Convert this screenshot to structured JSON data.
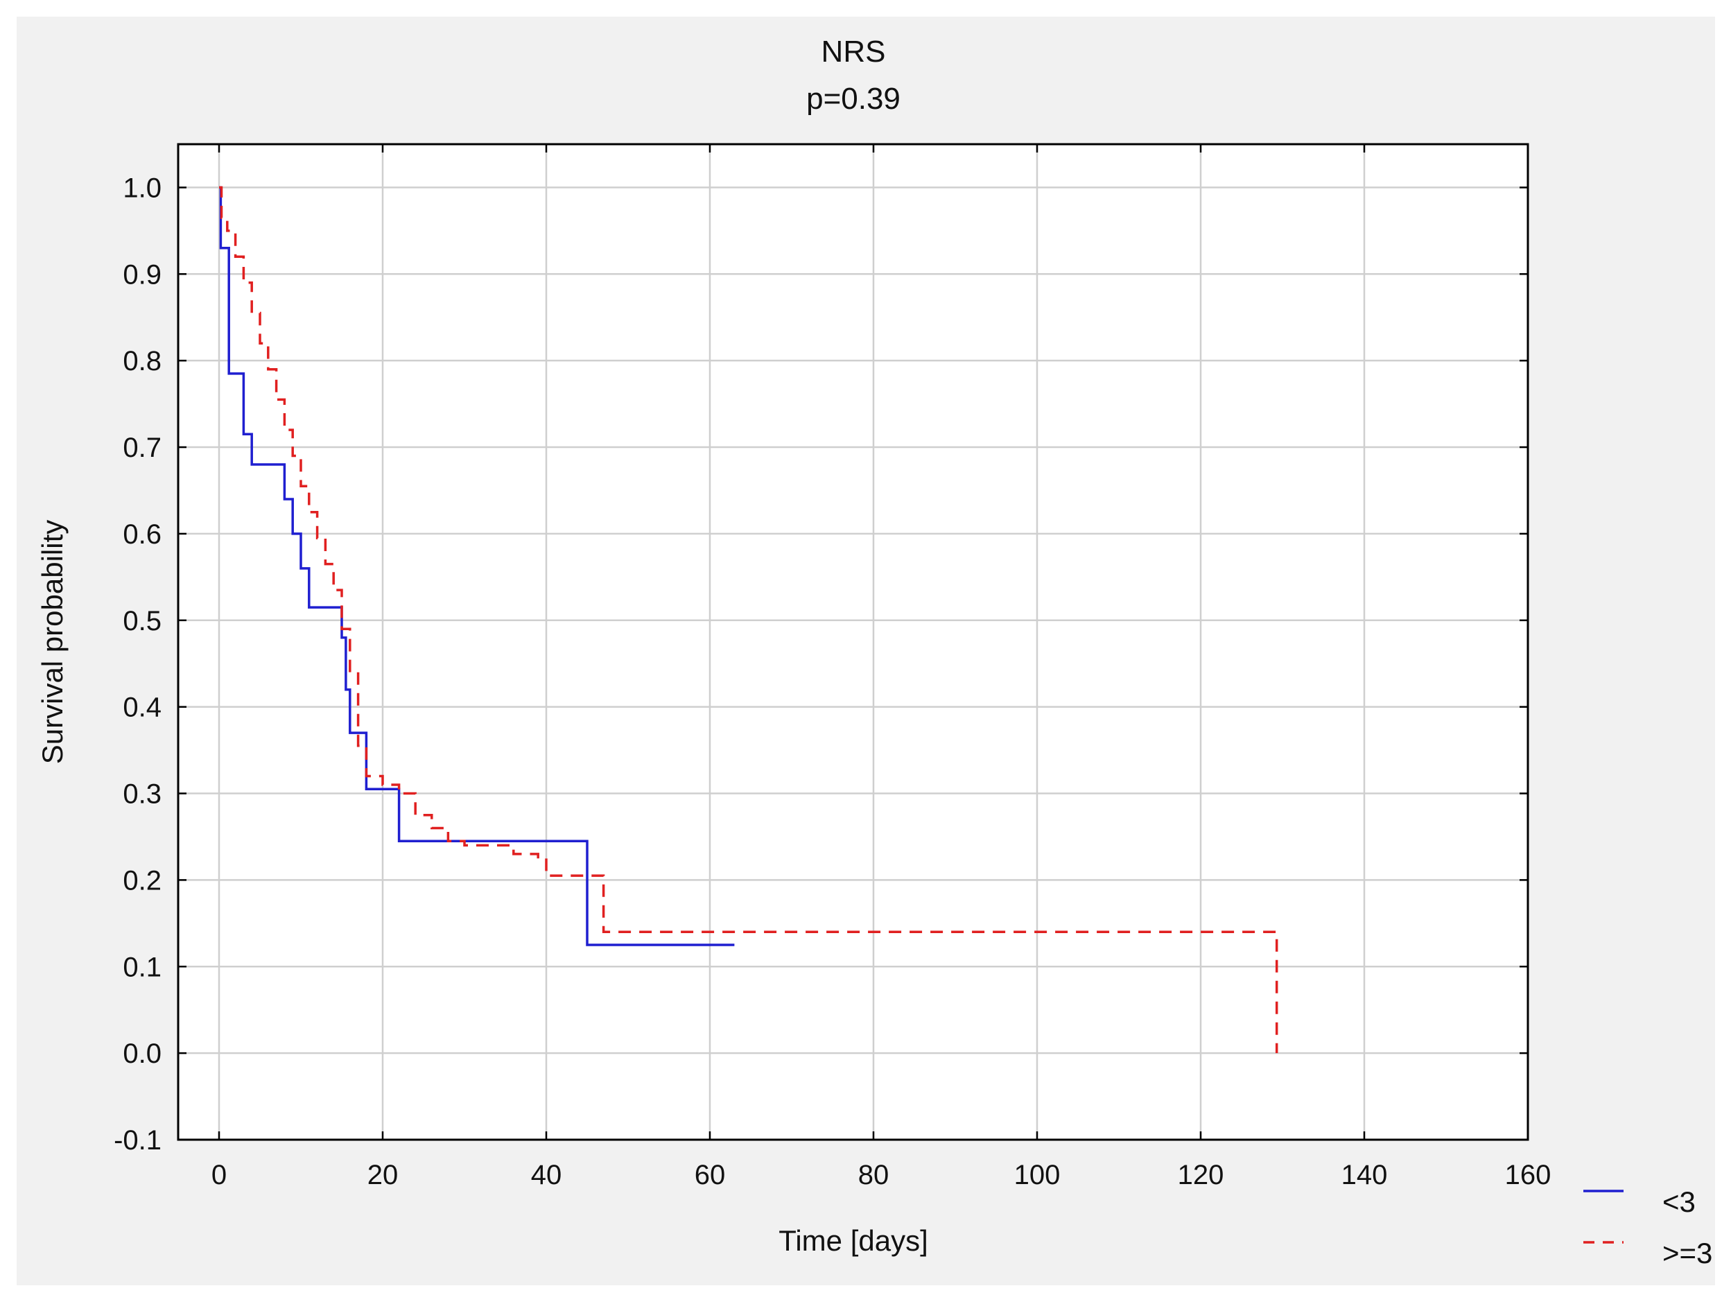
{
  "chart_data": {
    "type": "line",
    "line_shape": "step",
    "title": "NRS",
    "subtitle": "p=0.39",
    "xlabel": "Time [days]",
    "ylabel": "Survival probability",
    "xlim": [
      -5,
      160
    ],
    "ylim": [
      -0.1,
      1.05
    ],
    "xticks": [
      0,
      20,
      40,
      60,
      80,
      100,
      120,
      140,
      160
    ],
    "yticks": [
      -0.1,
      0.0,
      0.1,
      0.2,
      0.3,
      0.4,
      0.5,
      0.6,
      0.7,
      0.8,
      0.9,
      1.0
    ],
    "xtick_labels": [
      "0",
      "20",
      "40",
      "60",
      "80",
      "100",
      "120",
      "140",
      "160"
    ],
    "ytick_labels": [
      "-0.1",
      "0.0",
      "0.1",
      "0.2",
      "0.3",
      "0.4",
      "0.5",
      "0.6",
      "0.7",
      "0.8",
      "0.9",
      "1.0"
    ],
    "grid": true,
    "legend_position": "bottom-right",
    "series": [
      {
        "name": "<3",
        "color": "#1f1fd0",
        "dash": "solid",
        "x": [
          0,
          0.2,
          1.2,
          3,
          4,
          8,
          9,
          10,
          11,
          15,
          15.5,
          16,
          18,
          22,
          45,
          63
        ],
        "y": [
          1.0,
          0.93,
          0.785,
          0.715,
          0.68,
          0.64,
          0.6,
          0.56,
          0.515,
          0.48,
          0.42,
          0.37,
          0.305,
          0.245,
          0.125,
          0.125
        ]
      },
      {
        "name": ">=3",
        "color": "#e02020",
        "dash": "dashed",
        "x": [
          0,
          0.3,
          1,
          2,
          3,
          4,
          5,
          6,
          7,
          8,
          9,
          10,
          11,
          12,
          13,
          14,
          15,
          16,
          17,
          18,
          20,
          22,
          24,
          26,
          28,
          30,
          33,
          36,
          39,
          40,
          42,
          45,
          47,
          129,
          129.3
        ],
        "y": [
          1.0,
          0.965,
          0.95,
          0.92,
          0.89,
          0.855,
          0.82,
          0.79,
          0.755,
          0.72,
          0.69,
          0.655,
          0.625,
          0.595,
          0.565,
          0.535,
          0.49,
          0.44,
          0.355,
          0.32,
          0.31,
          0.3,
          0.275,
          0.26,
          0.245,
          0.24,
          0.24,
          0.23,
          0.225,
          0.205,
          0.205,
          0.205,
          0.14,
          0.14,
          0.0
        ]
      }
    ]
  }
}
